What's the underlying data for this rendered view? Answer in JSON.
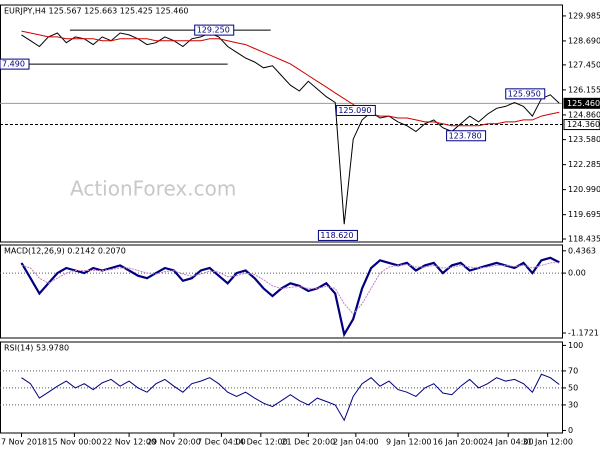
{
  "chart_data": [
    {
      "type": "line",
      "title": "EURJPY,H4  125.567 125.663 125.425 125.460",
      "watermark": "ActionForex.com",
      "ylim": [
        118.28,
        130.55
      ],
      "yticks": [
        129.985,
        {
          "value": 128.69,
          "label": "128.690"
        },
        {
          "value": 127.45,
          "label": "127.450"
        },
        126.155,
        {
          "value": 124.86,
          "label": "124.860"
        },
        {
          "value": 123.58,
          "label": "123.580"
        },
        122.285,
        {
          "value": 120.99,
          "label": "120.990"
        },
        119.695,
        118.435
      ],
      "series": [
        {
          "color": "#000000",
          "values": [
            129.0,
            128.7,
            128.4,
            128.9,
            129.1,
            128.6,
            128.9,
            128.8,
            128.5,
            128.9,
            128.7,
            129.1,
            129.0,
            128.8,
            128.5,
            128.6,
            128.9,
            128.7,
            128.4,
            128.8,
            128.9,
            129.1,
            128.9,
            128.4,
            128.1,
            127.8,
            127.6,
            127.3,
            127.4,
            126.9,
            126.4,
            126.1,
            126.6,
            126.2,
            125.8,
            125.5,
            119.2,
            123.6,
            124.6,
            125.0,
            124.7,
            124.8,
            124.5,
            124.3,
            124.0,
            124.4,
            124.6,
            124.2,
            124.0,
            124.4,
            124.8,
            124.5,
            124.9,
            125.2,
            125.3,
            125.5,
            125.3,
            124.8,
            125.7,
            125.9,
            125.46
          ]
        },
        {
          "color": "#d00000",
          "values": [
            129.2,
            129.1,
            129.0,
            128.9,
            128.9,
            128.8,
            128.8,
            128.8,
            128.8,
            128.7,
            128.7,
            128.8,
            128.8,
            128.8,
            128.8,
            128.7,
            128.7,
            128.7,
            128.7,
            128.7,
            128.7,
            128.8,
            128.8,
            128.7,
            128.6,
            128.5,
            128.3,
            128.1,
            127.9,
            127.7,
            127.5,
            127.2,
            126.9,
            126.6,
            126.3,
            126.0,
            125.7,
            125.4,
            125.1,
            124.9,
            124.8,
            124.8,
            124.7,
            124.7,
            124.6,
            124.5,
            124.5,
            124.4,
            124.3,
            124.3,
            124.3,
            124.3,
            124.4,
            124.4,
            124.5,
            124.5,
            124.6,
            124.6,
            124.8,
            124.9,
            125.0
          ]
        }
      ],
      "annotations": [
        {
          "x": 21.5,
          "value": 129.25,
          "label": "129.250"
        },
        {
          "x": -0.8,
          "value": 127.49,
          "label": "7.490"
        },
        {
          "x": 37.3,
          "value": 125.09,
          "label": "125.090"
        },
        {
          "x": 56.2,
          "value": 125.95,
          "label": "125.950"
        },
        {
          "x": 49.6,
          "value": 123.78,
          "label": "123.780"
        },
        {
          "x": 35.3,
          "value": 118.62,
          "label": "118.620"
        }
      ],
      "price_labels": [
        {
          "value": 125.46,
          "label": "125.460"
        },
        {
          "value": 124.36,
          "label": "124.360"
        }
      ]
    },
    {
      "type": "line",
      "title": "MACD(12,26,9) 0.2142 0.2070",
      "ylim": [
        -1.27,
        0.55
      ],
      "yticks": [
        0.4363,
        {
          "value": 0,
          "label": "0.00"
        },
        -1.1721
      ],
      "series": [
        {
          "color": "#000080",
          "values": [
            0.2,
            -0.1,
            -0.4,
            -0.2,
            0.0,
            0.1,
            0.05,
            0.0,
            0.1,
            0.05,
            0.1,
            0.15,
            0.05,
            -0.05,
            -0.1,
            0.0,
            0.1,
            0.05,
            -0.15,
            -0.1,
            0.05,
            0.1,
            -0.05,
            -0.2,
            0.0,
            0.05,
            -0.1,
            -0.3,
            -0.45,
            -0.3,
            -0.2,
            -0.25,
            -0.35,
            -0.3,
            -0.2,
            -0.4,
            -1.2,
            -0.9,
            -0.3,
            0.1,
            0.25,
            0.2,
            0.15,
            0.2,
            0.05,
            0.15,
            0.2,
            0.0,
            0.15,
            0.2,
            0.05,
            0.1,
            0.15,
            0.2,
            0.15,
            0.1,
            0.2,
            0.0,
            0.25,
            0.3,
            0.21
          ]
        },
        {
          "color": "#c080c0",
          "values": [
            0.15,
            0.1,
            -0.1,
            -0.2,
            -0.1,
            0.0,
            0.05,
            0.05,
            0.05,
            0.05,
            0.07,
            0.1,
            0.1,
            0.05,
            0.0,
            -0.02,
            0.03,
            0.05,
            -0.02,
            -0.06,
            -0.02,
            0.04,
            0.02,
            -0.07,
            -0.05,
            0.0,
            -0.03,
            -0.13,
            -0.25,
            -0.3,
            -0.28,
            -0.26,
            -0.3,
            -0.3,
            -0.26,
            -0.3,
            -0.6,
            -0.8,
            -0.6,
            -0.3,
            0.0,
            0.12,
            0.15,
            0.17,
            0.12,
            0.12,
            0.15,
            0.1,
            0.11,
            0.15,
            0.12,
            0.1,
            0.12,
            0.15,
            0.15,
            0.13,
            0.15,
            0.1,
            0.15,
            0.2,
            0.207
          ]
        }
      ]
    },
    {
      "type": "line",
      "title": "RSI(14) 53.9780",
      "ylim": [
        -3,
        104
      ],
      "yticks": [
        100,
        70,
        50,
        30,
        0
      ],
      "series": [
        {
          "color": "#000080",
          "values": [
            62,
            55,
            38,
            45,
            52,
            58,
            50,
            55,
            48,
            56,
            60,
            52,
            58,
            50,
            45,
            55,
            60,
            52,
            45,
            55,
            58,
            62,
            55,
            45,
            40,
            45,
            38,
            32,
            28,
            35,
            42,
            35,
            30,
            38,
            34,
            30,
            12,
            40,
            55,
            62,
            52,
            58,
            48,
            45,
            40,
            50,
            55,
            44,
            42,
            52,
            60,
            50,
            55,
            62,
            58,
            60,
            55,
            45,
            66,
            62,
            53.98
          ]
        }
      ],
      "xlim": [
        -2.4,
        60.3
      ],
      "xticks": [
        {
          "value": 0,
          "label": "7 Nov 2018"
        },
        {
          "value": 5.9,
          "label": "15 Nov 00:00"
        },
        {
          "value": 12,
          "label": "22 Nov 12:00"
        },
        {
          "value": 17,
          "label": "29 Nov 20:00"
        },
        {
          "value": 22.3,
          "label": "7 Dec 04:00"
        },
        {
          "value": 26.7,
          "label": "14 Dec 12:00"
        },
        {
          "value": 32,
          "label": "21 Dec 20:00"
        },
        {
          "value": 37.3,
          "label": "2 Jan 04:00"
        },
        {
          "value": 43.2,
          "label": "9 Jan 12:00"
        },
        {
          "value": 48.7,
          "label": "16 Jan 20:00"
        },
        {
          "value": 54.3,
          "label": "24 Jan 04:00"
        },
        {
          "value": 58.7,
          "label": "31 Jan 12:00"
        }
      ]
    }
  ]
}
